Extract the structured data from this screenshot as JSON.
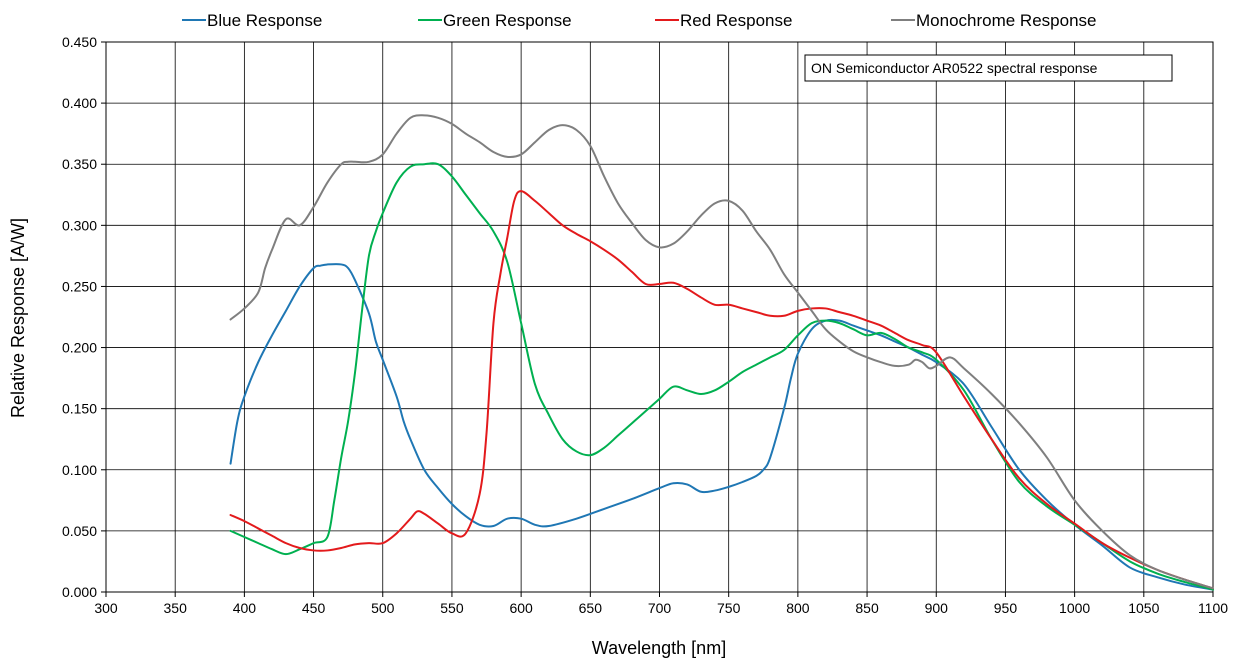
{
  "chart_data": {
    "type": "line",
    "title": "",
    "xlabel": "Wavelength [nm]",
    "ylabel": "Relative Response [A/W]",
    "xlim": [
      300,
      1100
    ],
    "ylim": [
      0,
      0.45
    ],
    "x_ticks": [
      "300",
      "350",
      "400",
      "450",
      "500",
      "550",
      "600",
      "650",
      "700",
      "750",
      "800",
      "850",
      "900",
      "950",
      "1000",
      "1050",
      "1100"
    ],
    "y_ticks": [
      "0.000",
      "0.050",
      "0.100",
      "0.150",
      "0.200",
      "0.250",
      "0.300",
      "0.350",
      "0.400",
      "0.450"
    ],
    "grid": true,
    "legend_position": "top",
    "annotation": "ON Semiconductor AR0522 spectral response",
    "series": [
      {
        "name": "Blue Response",
        "color": "#1f77b4",
        "x": [
          390,
          395,
          400,
          410,
          420,
          430,
          440,
          450,
          455,
          460,
          470,
          475,
          480,
          490,
          495,
          500,
          510,
          515,
          520,
          530,
          540,
          550,
          560,
          570,
          580,
          590,
          600,
          610,
          620,
          640,
          660,
          680,
          700,
          710,
          720,
          730,
          740,
          750,
          760,
          770,
          775,
          780,
          790,
          795,
          800,
          810,
          820,
          830,
          840,
          850,
          860,
          870,
          880,
          890,
          900,
          920,
          940,
          960,
          980,
          1000,
          1020,
          1040,
          1060,
          1080,
          1100
        ],
        "y": [
          0.105,
          0.14,
          0.16,
          0.188,
          0.21,
          0.23,
          0.25,
          0.265,
          0.267,
          0.268,
          0.268,
          0.265,
          0.255,
          0.228,
          0.205,
          0.19,
          0.16,
          0.14,
          0.125,
          0.1,
          0.085,
          0.072,
          0.062,
          0.055,
          0.054,
          0.06,
          0.06,
          0.055,
          0.054,
          0.06,
          0.068,
          0.076,
          0.085,
          0.089,
          0.088,
          0.082,
          0.083,
          0.086,
          0.09,
          0.095,
          0.1,
          0.11,
          0.15,
          0.175,
          0.195,
          0.215,
          0.222,
          0.222,
          0.218,
          0.214,
          0.21,
          0.205,
          0.2,
          0.194,
          0.188,
          0.17,
          0.135,
          0.1,
          0.075,
          0.055,
          0.038,
          0.02,
          0.012,
          0.006,
          0.002
        ]
      },
      {
        "name": "Green Response",
        "color": "#00b050",
        "x": [
          390,
          400,
          410,
          420,
          430,
          440,
          450,
          460,
          465,
          470,
          475,
          480,
          485,
          490,
          495,
          500,
          510,
          520,
          530,
          540,
          550,
          560,
          570,
          580,
          590,
          600,
          610,
          620,
          630,
          640,
          650,
          660,
          670,
          680,
          690,
          700,
          710,
          720,
          730,
          740,
          750,
          760,
          770,
          780,
          790,
          800,
          810,
          820,
          830,
          840,
          850,
          860,
          870,
          880,
          890,
          900,
          920,
          940,
          960,
          980,
          1000,
          1020,
          1040,
          1060,
          1080,
          1100
        ],
        "y": [
          0.05,
          0.045,
          0.04,
          0.035,
          0.031,
          0.035,
          0.04,
          0.045,
          0.075,
          0.11,
          0.14,
          0.18,
          0.23,
          0.275,
          0.295,
          0.31,
          0.335,
          0.348,
          0.35,
          0.35,
          0.34,
          0.325,
          0.31,
          0.295,
          0.27,
          0.22,
          0.17,
          0.145,
          0.125,
          0.115,
          0.112,
          0.118,
          0.128,
          0.138,
          0.148,
          0.158,
          0.168,
          0.165,
          0.162,
          0.165,
          0.172,
          0.18,
          0.186,
          0.192,
          0.198,
          0.21,
          0.22,
          0.222,
          0.22,
          0.215,
          0.21,
          0.212,
          0.207,
          0.2,
          0.196,
          0.19,
          0.165,
          0.125,
          0.09,
          0.07,
          0.055,
          0.04,
          0.025,
          0.015,
          0.008,
          0.002
        ]
      },
      {
        "name": "Red Response",
        "color": "#e31a1c",
        "x": [
          390,
          400,
          410,
          420,
          430,
          440,
          450,
          460,
          470,
          480,
          490,
          500,
          510,
          520,
          525,
          530,
          540,
          550,
          560,
          570,
          575,
          580,
          585,
          590,
          595,
          600,
          610,
          620,
          630,
          640,
          650,
          660,
          670,
          680,
          690,
          700,
          710,
          720,
          730,
          740,
          750,
          760,
          770,
          780,
          790,
          800,
          810,
          820,
          830,
          840,
          850,
          860,
          870,
          880,
          890,
          900,
          920,
          940,
          960,
          980,
          1000,
          1020,
          1040,
          1060,
          1080,
          1100
        ],
        "y": [
          0.063,
          0.058,
          0.052,
          0.046,
          0.04,
          0.036,
          0.034,
          0.034,
          0.036,
          0.039,
          0.04,
          0.04,
          0.048,
          0.06,
          0.066,
          0.064,
          0.056,
          0.048,
          0.048,
          0.08,
          0.13,
          0.22,
          0.26,
          0.29,
          0.32,
          0.328,
          0.32,
          0.31,
          0.3,
          0.293,
          0.287,
          0.28,
          0.272,
          0.262,
          0.252,
          0.252,
          0.253,
          0.248,
          0.241,
          0.235,
          0.235,
          0.232,
          0.229,
          0.226,
          0.226,
          0.23,
          0.232,
          0.232,
          0.229,
          0.226,
          0.222,
          0.218,
          0.212,
          0.206,
          0.202,
          0.196,
          0.16,
          0.125,
          0.093,
          0.072,
          0.056,
          0.04,
          0.028,
          0.018,
          0.01,
          0.003
        ]
      },
      {
        "name": "Monochrome Response",
        "color": "#7f7f7f",
        "x": [
          390,
          400,
          410,
          415,
          420,
          430,
          440,
          450,
          460,
          470,
          475,
          480,
          490,
          500,
          510,
          520,
          530,
          540,
          550,
          560,
          570,
          580,
          590,
          600,
          610,
          620,
          630,
          640,
          650,
          660,
          670,
          680,
          690,
          700,
          710,
          720,
          730,
          740,
          750,
          760,
          770,
          780,
          790,
          800,
          810,
          820,
          830,
          840,
          850,
          860,
          870,
          880,
          885,
          890,
          895,
          900,
          910,
          920,
          940,
          960,
          980,
          1000,
          1020,
          1040,
          1060,
          1080,
          1100
        ],
        "y": [
          0.223,
          0.232,
          0.245,
          0.265,
          0.28,
          0.305,
          0.3,
          0.315,
          0.335,
          0.35,
          0.352,
          0.352,
          0.352,
          0.358,
          0.375,
          0.388,
          0.39,
          0.388,
          0.383,
          0.375,
          0.368,
          0.36,
          0.356,
          0.358,
          0.368,
          0.378,
          0.382,
          0.378,
          0.365,
          0.34,
          0.318,
          0.302,
          0.288,
          0.282,
          0.285,
          0.295,
          0.308,
          0.318,
          0.32,
          0.312,
          0.295,
          0.28,
          0.26,
          0.245,
          0.23,
          0.215,
          0.205,
          0.197,
          0.192,
          0.188,
          0.185,
          0.186,
          0.19,
          0.188,
          0.183,
          0.185,
          0.192,
          0.183,
          0.162,
          0.138,
          0.11,
          0.075,
          0.05,
          0.03,
          0.018,
          0.01,
          0.003
        ]
      }
    ]
  }
}
